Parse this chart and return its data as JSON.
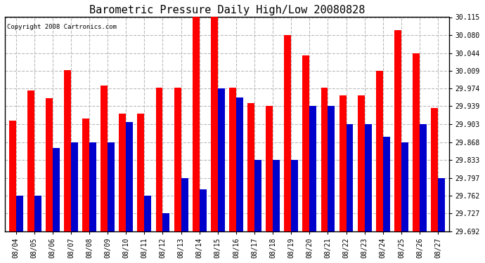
{
  "title": "Barometric Pressure Daily High/Low 20080828",
  "copyright": "Copyright 2008 Cartronics.com",
  "dates": [
    "08/04",
    "08/05",
    "08/06",
    "08/07",
    "08/08",
    "08/09",
    "08/10",
    "08/11",
    "08/12",
    "08/13",
    "08/14",
    "08/15",
    "08/16",
    "08/17",
    "08/18",
    "08/19",
    "08/20",
    "08/21",
    "08/22",
    "08/23",
    "08/24",
    "08/25",
    "08/26",
    "08/27"
  ],
  "highs": [
    29.91,
    29.97,
    29.955,
    30.01,
    29.915,
    29.98,
    29.925,
    29.925,
    29.975,
    29.975,
    30.12,
    30.12,
    29.975,
    29.945,
    29.94,
    30.08,
    30.04,
    29.975,
    29.96,
    29.96,
    30.009,
    30.09,
    30.044,
    29.935
  ],
  "lows": [
    29.762,
    29.762,
    29.857,
    29.868,
    29.868,
    29.868,
    29.908,
    29.762,
    29.727,
    29.797,
    29.775,
    29.974,
    29.956,
    29.833,
    29.833,
    29.833,
    29.939,
    29.939,
    29.903,
    29.903,
    29.879,
    29.868,
    29.903,
    29.797
  ],
  "high_color": "#ff0000",
  "low_color": "#0000cc",
  "bg_color": "#ffffff",
  "grid_color": "#bbbbbb",
  "yticks": [
    29.692,
    29.727,
    29.762,
    29.797,
    29.833,
    29.868,
    29.903,
    29.939,
    29.974,
    30.009,
    30.044,
    30.08,
    30.115
  ],
  "ymin": 29.692,
  "ymax": 30.115
}
